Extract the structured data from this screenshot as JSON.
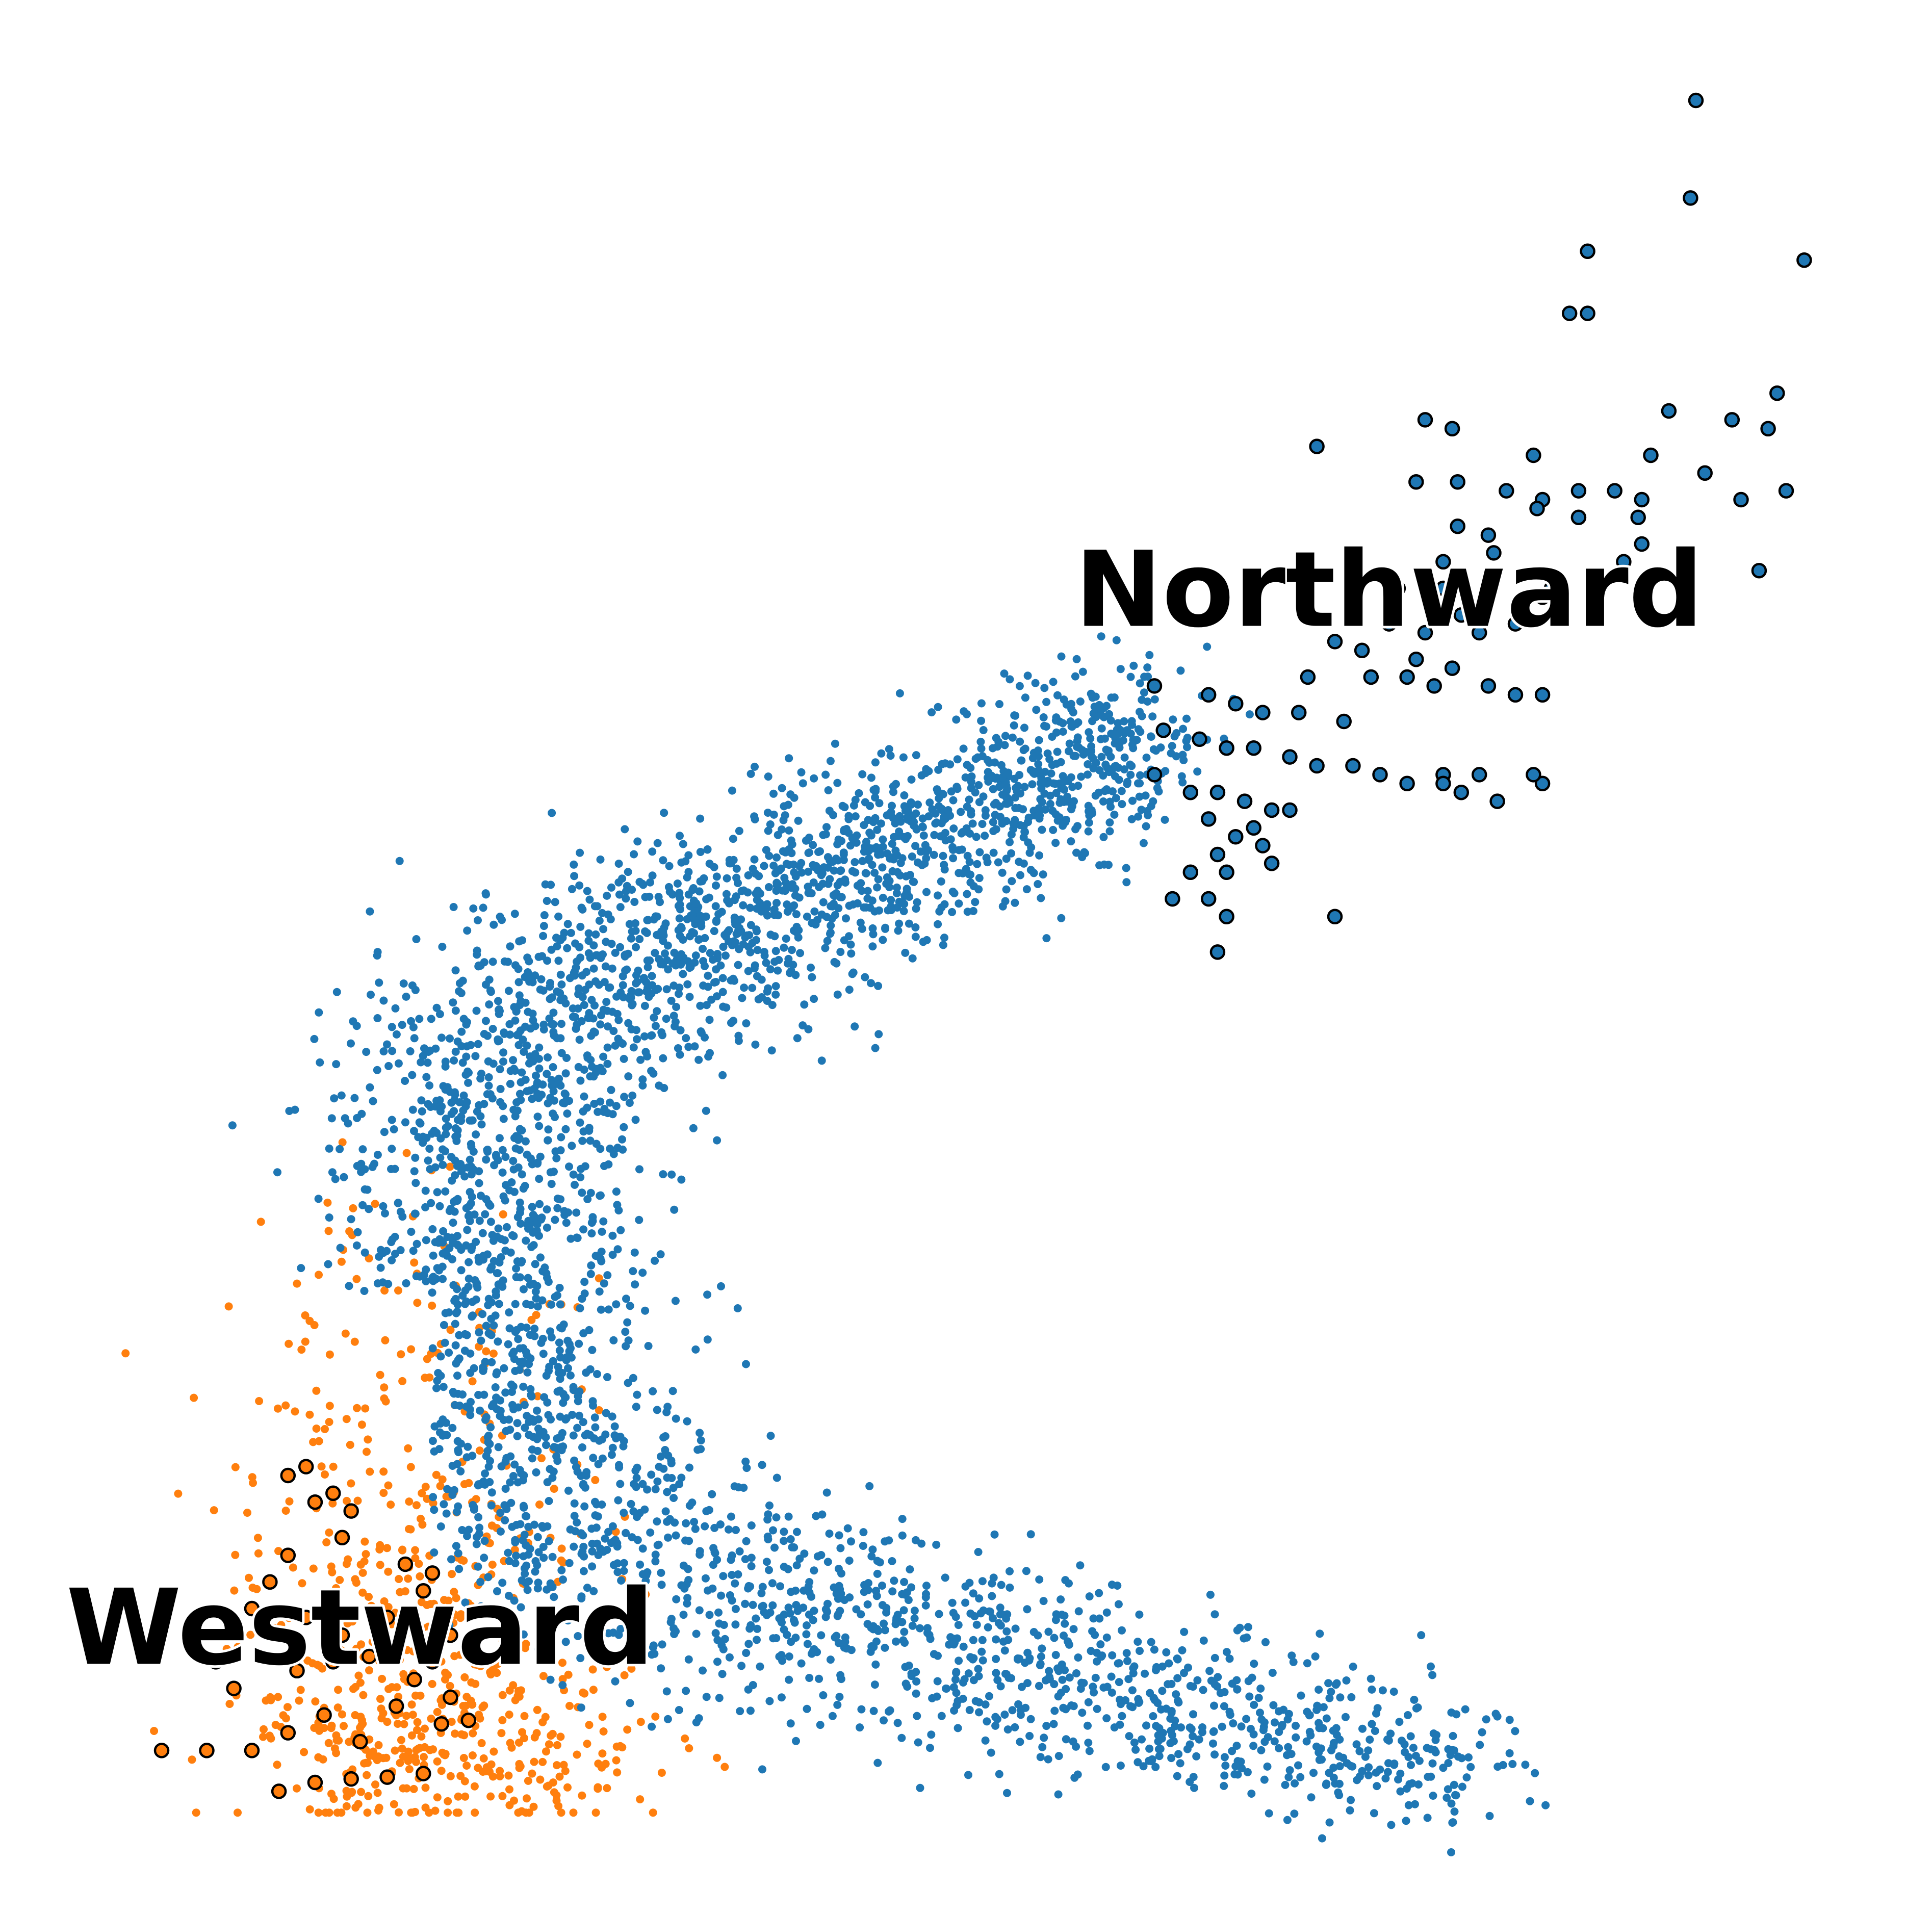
{
  "chart_data": {
    "type": "scatter",
    "title": "",
    "xlabel": "",
    "ylabel": "",
    "axes_visible": false,
    "grid": false,
    "legend": "none",
    "xlim": [
      0,
      100
    ],
    "ylim": [
      0,
      100
    ],
    "series": [
      {
        "id": "westward",
        "color": "#ff7f0e",
        "edge_color": "#000000",
        "density_points": 700,
        "highlighted_points": [
          [
            5.0,
            4.5
          ],
          [
            7.5,
            4.5
          ],
          [
            10.0,
            4.5
          ],
          [
            11.5,
            2.2
          ],
          [
            13.5,
            2.7
          ],
          [
            15.5,
            2.9
          ],
          [
            17.5,
            3.0
          ],
          [
            19.5,
            3.2
          ],
          [
            12.0,
            5.5
          ],
          [
            14.0,
            6.5
          ],
          [
            16.0,
            5.0
          ],
          [
            18.0,
            7.0
          ],
          [
            20.5,
            6.0
          ],
          [
            22.0,
            6.2
          ],
          [
            12.5,
            9.0
          ],
          [
            14.5,
            9.5
          ],
          [
            15.0,
            11.0
          ],
          [
            13.0,
            12.0
          ],
          [
            11.0,
            14.0
          ],
          [
            12.0,
            15.5
          ],
          [
            13.5,
            18.5
          ],
          [
            14.5,
            19.0
          ],
          [
            15.5,
            18.0
          ],
          [
            15.0,
            16.5
          ],
          [
            12.0,
            20.0
          ],
          [
            13.0,
            20.5
          ],
          [
            10.5,
            11.5
          ],
          [
            10.0,
            12.5
          ],
          [
            18.0,
            10.0
          ],
          [
            19.0,
            8.5
          ],
          [
            20.0,
            9.5
          ],
          [
            21.0,
            11.0
          ],
          [
            16.5,
            9.8
          ],
          [
            17.5,
            12.0
          ],
          [
            19.5,
            13.5
          ],
          [
            18.5,
            15.0
          ],
          [
            20.0,
            14.5
          ],
          [
            8.0,
            9.5
          ],
          [
            9.0,
            8.0
          ],
          [
            21.0,
            7.5
          ]
        ]
      },
      {
        "id": "northward",
        "color": "#1f77b4",
        "edge_color": "#000000",
        "density_points": 3800,
        "highlighted_points": [
          [
            90.0,
            97.5
          ],
          [
            89.7,
            92.0
          ],
          [
            84.0,
            89.0
          ],
          [
            96.0,
            88.5
          ],
          [
            83.0,
            85.5
          ],
          [
            84.0,
            85.5
          ],
          [
            94.5,
            81.0
          ],
          [
            88.5,
            80.0
          ],
          [
            92.0,
            79.5
          ],
          [
            94.0,
            79.0
          ],
          [
            75.0,
            79.5
          ],
          [
            76.5,
            79.0
          ],
          [
            69.0,
            78.0
          ],
          [
            81.0,
            77.5
          ],
          [
            87.5,
            77.5
          ],
          [
            90.5,
            76.5
          ],
          [
            74.5,
            76.0
          ],
          [
            76.8,
            76.0
          ],
          [
            79.5,
            75.5
          ],
          [
            81.5,
            75.0
          ],
          [
            83.5,
            75.5
          ],
          [
            85.5,
            75.5
          ],
          [
            87.0,
            75.0
          ],
          [
            92.5,
            75.0
          ],
          [
            95.0,
            75.5
          ],
          [
            81.2,
            74.5
          ],
          [
            83.5,
            74.0
          ],
          [
            76.8,
            73.5
          ],
          [
            86.8,
            74.0
          ],
          [
            78.5,
            73.0
          ],
          [
            78.8,
            72.0
          ],
          [
            87.0,
            72.5
          ],
          [
            93.5,
            71.0
          ],
          [
            76.0,
            71.5
          ],
          [
            86.0,
            71.5
          ],
          [
            82.0,
            70.0
          ],
          [
            73.5,
            70.0
          ],
          [
            76.0,
            70.0
          ],
          [
            81.5,
            69.5
          ],
          [
            77.0,
            68.5
          ],
          [
            80.0,
            68.0
          ],
          [
            73.0,
            68.0
          ],
          [
            75.0,
            67.5
          ],
          [
            78.0,
            67.5
          ],
          [
            70.0,
            67.0
          ],
          [
            71.5,
            66.5
          ],
          [
            74.5,
            66.0
          ],
          [
            76.5,
            65.5
          ],
          [
            68.5,
            65.0
          ],
          [
            72.0,
            65.0
          ],
          [
            74.0,
            65.0
          ],
          [
            75.5,
            64.5
          ],
          [
            78.5,
            64.5
          ],
          [
            80.0,
            64.0
          ],
          [
            81.5,
            64.0
          ],
          [
            60.0,
            64.5
          ],
          [
            63.0,
            64.0
          ],
          [
            64.5,
            63.5
          ],
          [
            66.0,
            63.0
          ],
          [
            68.0,
            63.0
          ],
          [
            70.5,
            62.5
          ],
          [
            60.5,
            62.0
          ],
          [
            62.5,
            61.5
          ],
          [
            64.0,
            61.0
          ],
          [
            65.5,
            61.0
          ],
          [
            67.5,
            60.5
          ],
          [
            69.0,
            60.0
          ],
          [
            71.0,
            60.0
          ],
          [
            72.5,
            59.5
          ],
          [
            74.0,
            59.0
          ],
          [
            76.0,
            59.5
          ],
          [
            78.0,
            59.5
          ],
          [
            81.5,
            59.0
          ],
          [
            76.0,
            59.0
          ],
          [
            77.0,
            58.5
          ],
          [
            79.0,
            58.0
          ],
          [
            81.0,
            59.5
          ],
          [
            60.0,
            59.5
          ],
          [
            62.0,
            58.5
          ],
          [
            63.5,
            58.5
          ],
          [
            65.0,
            58.0
          ],
          [
            66.5,
            57.5
          ],
          [
            67.5,
            57.5
          ],
          [
            63.0,
            57.0
          ],
          [
            64.5,
            56.0
          ],
          [
            65.5,
            56.5
          ],
          [
            66.0,
            55.5
          ],
          [
            63.5,
            55.0
          ],
          [
            62.0,
            54.0
          ],
          [
            64.0,
            54.0
          ],
          [
            66.5,
            54.5
          ],
          [
            61.0,
            52.5
          ],
          [
            63.0,
            52.5
          ],
          [
            64.0,
            51.5
          ],
          [
            70.0,
            51.5
          ],
          [
            63.5,
            49.5
          ]
        ]
      }
    ],
    "annotations": [
      {
        "id": "northward-label",
        "text": "Northward",
        "x": 73.0,
        "y": 69.5
      },
      {
        "id": "westward-label",
        "text": "Westward",
        "x": 16.0,
        "y": 11.0
      }
    ]
  }
}
